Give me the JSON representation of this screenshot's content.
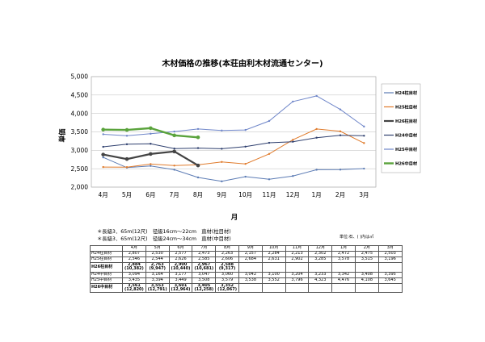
{
  "title": "木材価格の推移(本荘由利木材流通センター)",
  "notes": [
    "＊長級3．65m(12尺)　径級16cm～22cm　直材(柱目材)",
    "＊長級3．65m(12尺)　径級24cm～34cm　直材(中目材)"
  ],
  "unit_note": "単位:石、( )内は㎥",
  "chart_data": {
    "type": "line",
    "title": "木材価格の推移(本荘由利木材流通センター)",
    "xlabel": "月",
    "ylabel": "単価",
    "ylim": [
      2000,
      5000
    ],
    "yticks": [
      "2,000",
      "2,500",
      "3,000",
      "3,500",
      "4,000",
      "4,500",
      "5,000"
    ],
    "categories": [
      "4月",
      "5月",
      "6月",
      "7月",
      "8月",
      "9月",
      "10月",
      "11月",
      "12月",
      "1月",
      "2月",
      "3月"
    ],
    "grid": true,
    "legend_position": "right",
    "series": [
      {
        "name": "H24柱目材",
        "color": "#5b7bb4",
        "width": 1,
        "values": [
          2807,
          2530,
          2577,
          2473,
          2263,
          2157,
          2284,
          2213,
          2302,
          2472,
          2475,
          2503
        ]
      },
      {
        "name": "H25柱目材",
        "color": "#e07b2c",
        "width": 1,
        "values": [
          2546,
          2544,
          2626,
          2585,
          2606,
          2684,
          2631,
          2902,
          3285,
          3578,
          3515,
          3196
        ]
      },
      {
        "name": "H26柱目材",
        "color": "#444444",
        "width": 2.2,
        "values": [
          2884,
          2763,
          2900,
          2967,
          2588,
          null,
          null,
          null,
          null,
          null,
          null,
          null
        ]
      },
      {
        "name": "H24中目材",
        "color": "#2e3f6e",
        "width": 1,
        "values": [
          3094,
          3164,
          3177,
          3047,
          3060,
          3042,
          3100,
          3204,
          3233,
          3342,
          3408,
          3395
        ]
      },
      {
        "name": "H25中目材",
        "color": "#6f86c9",
        "width": 1,
        "values": [
          3435,
          3394,
          3449,
          3508,
          3579,
          3538,
          3552,
          3796,
          4323,
          4476,
          4108,
          3645
        ]
      },
      {
        "name": "H26中目材",
        "color": "#5aa33c",
        "width": 2.4,
        "values": [
          3561,
          3553,
          3601,
          3405,
          3352,
          null,
          null,
          null,
          null,
          null,
          null,
          null
        ]
      }
    ]
  },
  "table": {
    "header": [
      "",
      "4月",
      "5月",
      "6月",
      "7月",
      "8月",
      "9月",
      "10月",
      "11月",
      "12月",
      "1月",
      "2月",
      "3月"
    ],
    "rows": [
      {
        "label": "H24柱目材",
        "cells": [
          "2,807",
          "2,530",
          "2,577",
          "2,473",
          "2,263",
          "2,157",
          "2,284",
          "2,213",
          "2,302",
          "2,472",
          "2,475",
          "2,503"
        ]
      },
      {
        "label": "H25柱目材",
        "cells": [
          "2,546",
          "2,544",
          "2,626",
          "2,585",
          "2,606",
          "2,684",
          "2,631",
          "2,902",
          "3,285",
          "3,578",
          "3,515",
          "3,196"
        ]
      },
      {
        "label": "H26柱目材",
        "bold": true,
        "cells": [
          "2,884",
          "2,763",
          "2,900",
          "2,967",
          "2,588",
          "",
          "",
          "",
          "",
          "",
          "",
          ""
        ],
        "sub": [
          "(10,382)",
          "(9,947)",
          "(10,440)",
          "(10,681)",
          "(9,317)",
          "",
          "",
          "",
          "",
          "",
          "",
          ""
        ]
      },
      {
        "label": "H24中目材",
        "cells": [
          "3,094",
          "3,164",
          "3,177",
          "3,047",
          "3,060",
          "3,042",
          "3,100",
          "3,204",
          "3,233",
          "3,342",
          "3,408",
          "3,395"
        ]
      },
      {
        "label": "H25中目材",
        "cells": [
          "3,435",
          "3,394",
          "3,449",
          "3,508",
          "3,579",
          "3,538",
          "3,552",
          "3,796",
          "4,323",
          "4,476",
          "4,108",
          "3,645"
        ]
      },
      {
        "label": "H26中目材",
        "bold": true,
        "cells": [
          "3,561",
          "3,553",
          "3,601",
          "3,405",
          "3,352",
          "",
          "",
          "",
          "",
          "",
          "",
          ""
        ],
        "sub": [
          "(12,820)",
          "(12,791)",
          "(12,964)",
          "(12,258)",
          "(12,067)",
          "",
          "",
          "",
          "",
          "",
          "",
          ""
        ]
      }
    ]
  }
}
